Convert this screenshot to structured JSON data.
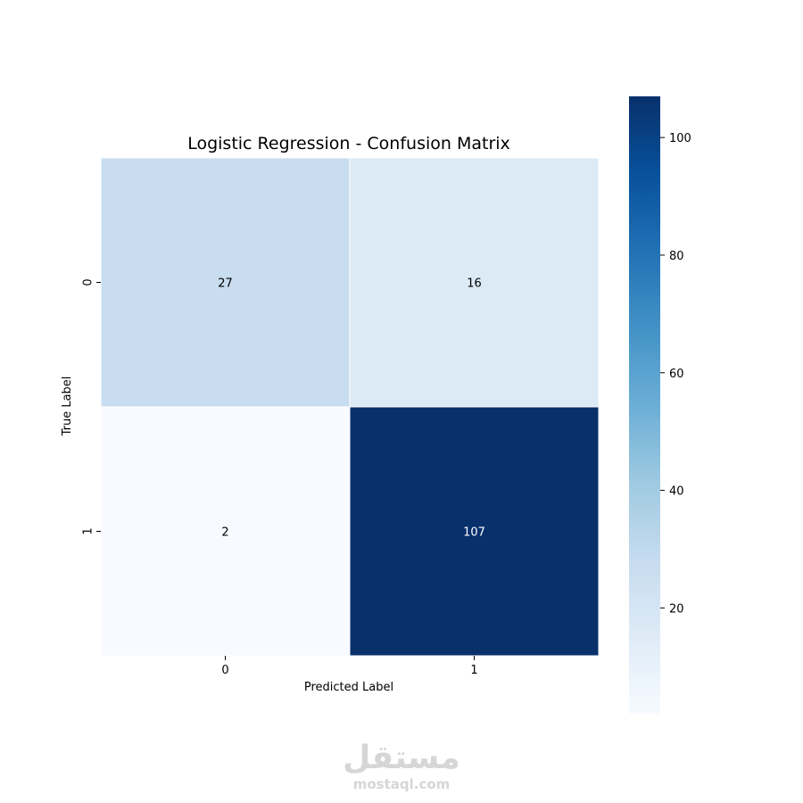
{
  "chart_data": {
    "type": "heatmap",
    "title": "Logistic Regression - Confusion Matrix",
    "xlabel": "Predicted Label",
    "ylabel": "True Label",
    "x_categories": [
      "0",
      "1"
    ],
    "y_categories": [
      "0",
      "1"
    ],
    "matrix": [
      [
        27,
        16
      ],
      [
        2,
        107
      ]
    ],
    "colormap": "Blues",
    "colorbar": {
      "range": [
        2,
        107
      ],
      "ticks": [
        20,
        40,
        60,
        80,
        100
      ],
      "tick_labels": [
        "20",
        "40",
        "60",
        "80",
        "100"
      ]
    }
  },
  "colors": {
    "scale": [
      "#f7fbff",
      "#deebf7",
      "#c6dbef",
      "#9ecae1",
      "#6baed6",
      "#4292c6",
      "#2171b5",
      "#08519c",
      "#08306b"
    ],
    "cell_border": "#ffffff",
    "text_dark": "#000000",
    "text_light": "#ffffff"
  },
  "watermark": {
    "arabic": "مستقل",
    "url": "mostaql.com"
  }
}
